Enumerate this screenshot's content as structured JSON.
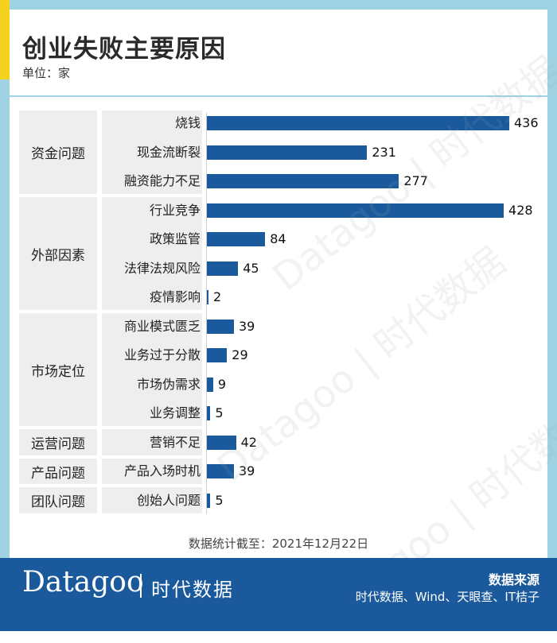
{
  "title": "创业失败主要原因",
  "unit": "单位：家",
  "note": "数据统计截至：2021年12月22日",
  "footer": {
    "logo": "Datagoo",
    "logo_cn": "时代数据",
    "source_title": "数据来源",
    "source_list": "时代数据、Wind、天眼查、IT桔子"
  },
  "watermark": "Datagoo | 时代数据",
  "colors": {
    "bar": "#1a5a9c",
    "frame": "#9fd3e3",
    "accent": "#f4d21e"
  },
  "chart_data": {
    "type": "bar",
    "orientation": "horizontal",
    "groups": [
      {
        "name": "资金问题",
        "items": [
          {
            "label": "烧钱",
            "value": 436
          },
          {
            "label": "现金流断裂",
            "value": 231
          },
          {
            "label": "融资能力不足",
            "value": 277
          }
        ]
      },
      {
        "name": "外部因素",
        "items": [
          {
            "label": "行业竞争",
            "value": 428
          },
          {
            "label": "政策监管",
            "value": 84
          },
          {
            "label": "法律法规风险",
            "value": 45
          },
          {
            "label": "疫情影响",
            "value": 2
          }
        ]
      },
      {
        "name": "市场定位",
        "items": [
          {
            "label": "商业模式匮乏",
            "value": 39
          },
          {
            "label": "业务过于分散",
            "value": 29
          },
          {
            "label": "市场伪需求",
            "value": 9
          },
          {
            "label": "业务调整",
            "value": 5
          }
        ]
      },
      {
        "name": "运营问题",
        "items": [
          {
            "label": "营销不足",
            "value": 42
          }
        ]
      },
      {
        "name": "产品问题",
        "items": [
          {
            "label": "产品入场时机",
            "value": 39
          }
        ]
      },
      {
        "name": "团队问题",
        "items": [
          {
            "label": "创始人问题",
            "value": 5
          }
        ]
      }
    ],
    "xlim": [
      0,
      436
    ]
  }
}
